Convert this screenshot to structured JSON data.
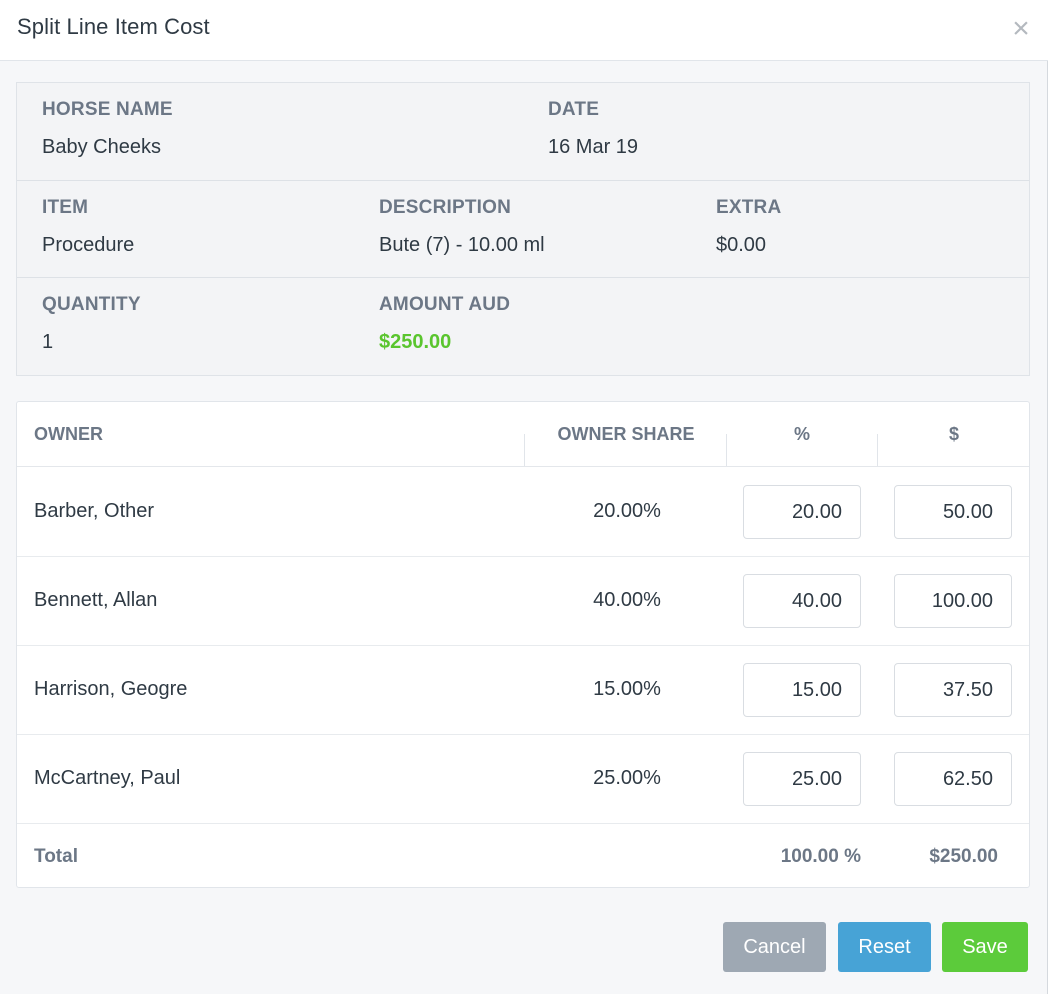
{
  "dialog": {
    "title": "Split Line Item Cost",
    "close_icon": "×"
  },
  "details": {
    "horse_name": {
      "label": "HORSE NAME",
      "value": "Baby Cheeks"
    },
    "date": {
      "label": "DATE",
      "value": "16 Mar 19"
    },
    "item": {
      "label": "ITEM",
      "value": "Procedure"
    },
    "description": {
      "label": "DESCRIPTION",
      "value": "Bute (7) - 10.00 ml"
    },
    "extra": {
      "label": "EXTRA",
      "value": "$0.00"
    },
    "quantity": {
      "label": "QUANTITY",
      "value": "1"
    },
    "amount": {
      "label": "AMOUNT AUD",
      "value": "$250.00",
      "color": "#5ac52e"
    }
  },
  "table": {
    "columns": [
      "OWNER",
      "OWNER SHARE",
      "%",
      "$"
    ],
    "rows": [
      {
        "owner": "Barber, Other",
        "share": "20.00%",
        "percent": "20.00",
        "amount": "50.00"
      },
      {
        "owner": "Bennett, Allan",
        "share": "40.00%",
        "percent": "40.00",
        "amount": "100.00"
      },
      {
        "owner": "Harrison, Geogre",
        "share": "15.00%",
        "percent": "15.00",
        "amount": "37.50"
      },
      {
        "owner": "McCartney, Paul",
        "share": "25.00%",
        "percent": "25.00",
        "amount": "62.50"
      }
    ],
    "total": {
      "label": "Total",
      "percent": "100.00 %",
      "amount": "$250.00"
    }
  },
  "buttons": {
    "cancel": "Cancel",
    "reset": "Reset",
    "save": "Save"
  },
  "colors": {
    "cancel": "#9ea8b3",
    "reset": "#47a3d6",
    "save": "#5ccb3b"
  }
}
